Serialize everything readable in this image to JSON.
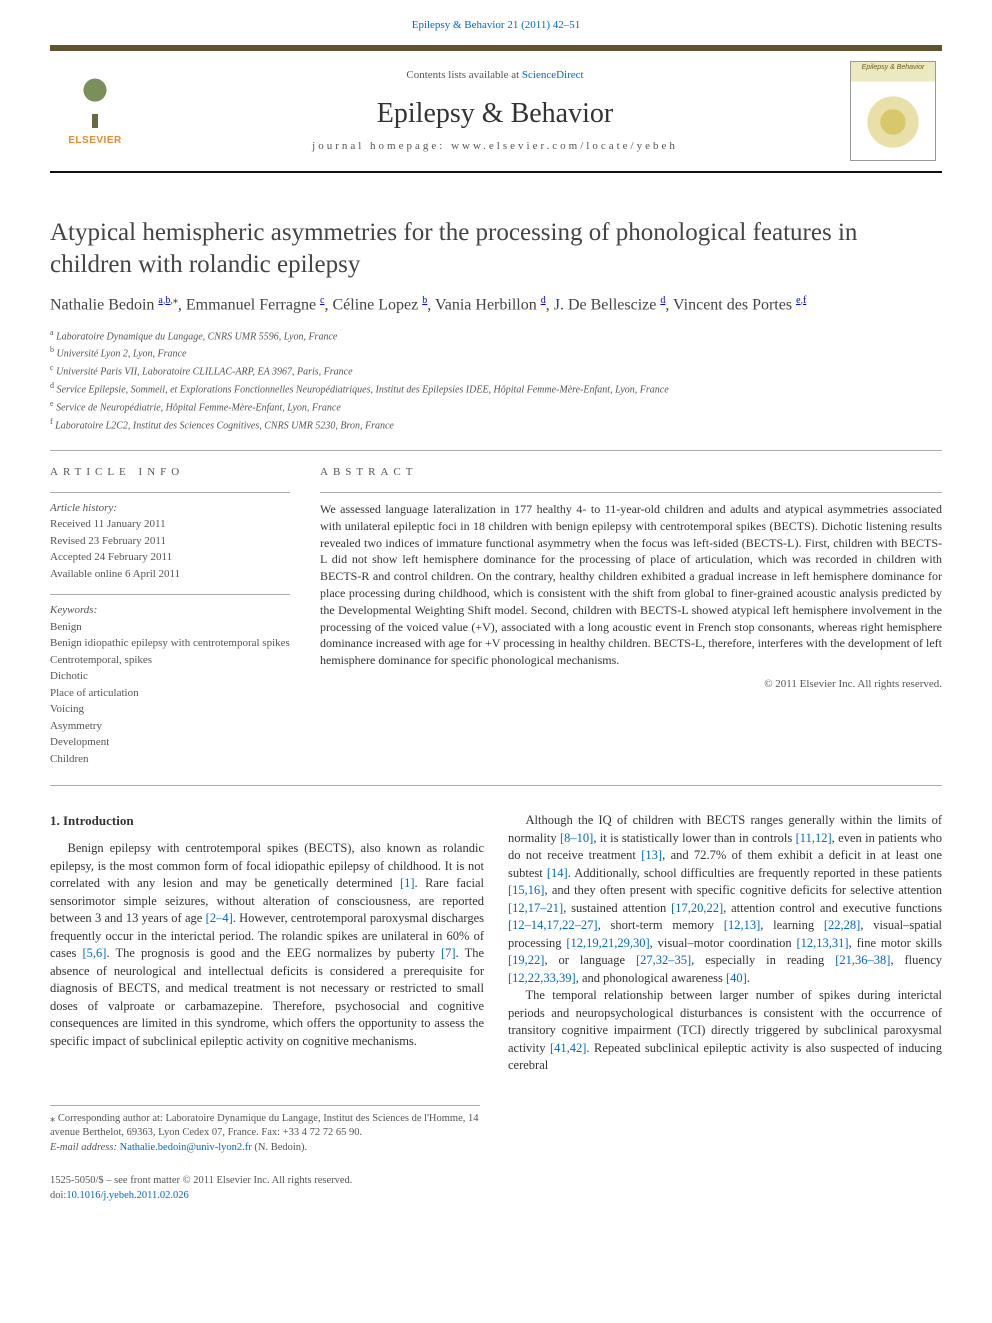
{
  "top_link": {
    "journal": "Epilepsy & Behavior",
    "vol_issue_pages": "21 (2011) 42–51"
  },
  "header": {
    "publisher": "ELSEVIER",
    "contents_prefix": "Contents lists available at ",
    "contents_link": "ScienceDirect",
    "journal_name": "Epilepsy & Behavior",
    "homepage_prefix": "journal homepage: ",
    "homepage": "www.elsevier.com/locate/yebeh",
    "cover_title": "Epilepsy & Behavior"
  },
  "article": {
    "title": "Atypical hemispheric asymmetries for the processing of phonological features in children with rolandic epilepsy",
    "authors": "Nathalie Bedoin |a,b,*|, Emmanuel Ferragne |c|, Céline Lopez |b|, Vania Herbillon |d|, J. De Bellescize |d|, Vincent des Portes |e,f|",
    "affiliations": [
      "a Laboratoire Dynamique du Langage, CNRS UMR 5596, Lyon, France",
      "b Université Lyon 2, Lyon, France",
      "c Université Paris VII, Laboratoire CLILLAC-ARP, EA 3967, Paris, France",
      "d Service Epilepsie, Sommeil, et Explorations Fonctionnelles Neuropédiatriques, Institut des Epilepsies IDEE, Hôpital Femme-Mère-Enfant, Lyon, France",
      "e Service de Neuropédiatrie, Hôpital Femme-Mère-Enfant, Lyon, France",
      "f Laboratoire L2C2, Institut des Sciences Cognitives, CNRS UMR 5230, Bron, France"
    ]
  },
  "meta": {
    "article_info_head": "ARTICLE INFO",
    "history_label": "Article history:",
    "history": [
      "Received 11 January 2011",
      "Revised 23 February 2011",
      "Accepted 24 February 2011",
      "Available online 6 April 2011"
    ],
    "keywords_label": "Keywords:",
    "keywords": [
      "Benign",
      "Benign idiopathic epilepsy with centrotemporal spikes",
      "Centrotemporal, spikes",
      "Dichotic",
      "Place of articulation",
      "Voicing",
      "Asymmetry",
      "Development",
      "Children"
    ]
  },
  "abstract": {
    "head": "ABSTRACT",
    "text": "We assessed language lateralization in 177 healthy 4- to 11-year-old children and adults and atypical asymmetries associated with unilateral epileptic foci in 18 children with benign epilepsy with centrotemporal spikes (BECTS). Dichotic listening results revealed two indices of immature functional asymmetry when the focus was left-sided (BECTS-L). First, children with BECTS-L did not show left hemisphere dominance for the processing of place of articulation, which was recorded in children with BECTS-R and control children. On the contrary, healthy children exhibited a gradual increase in left hemisphere dominance for place processing during childhood, which is consistent with the shift from global to finer-grained acoustic analysis predicted by the Developmental Weighting Shift model. Second, children with BECTS-L showed atypical left hemisphere involvement in the processing of the voiced value (+V), associated with a long acoustic event in French stop consonants, whereas right hemisphere dominance increased with age for +V processing in healthy children. BECTS-L, therefore, interferes with the development of left hemisphere dominance for specific phonological mechanisms.",
    "copyright": "© 2011 Elsevier Inc. All rights reserved."
  },
  "section1": {
    "heading": "1. Introduction",
    "p1_a": "Benign epilepsy with centrotemporal spikes (BECTS), also known as rolandic epilepsy, is the most common form of focal idiopathic epilepsy of childhood. It is not correlated with any lesion and may be genetically determined ",
    "r1": "[1]",
    "p1_b": ". Rare facial sensorimotor simple seizures, without alteration of consciousness, are reported between 3 and 13 years of age ",
    "r2": "[2–4]",
    "p1_c": ". However, centrotemporal paroxysmal discharges frequently occur in the interictal period. The rolandic spikes are unilateral in 60% of cases ",
    "r3": "[5,6]",
    "p1_d": ". The prognosis is good and the EEG normalizes by puberty ",
    "r4": "[7]",
    "p1_e": ". The absence of neurological and intellectual deficits is considered a prerequisite for diagnosis of BECTS, and medical treatment is not necessary or restricted to small doses of valproate or carbamazepine. Therefore, psychosocial and cognitive consequences are limited in this syndrome, which offers the ",
    "p1_f": "opportunity to assess the specific impact of subclinical epileptic activity on cognitive mechanisms.",
    "p2_a": "Although the IQ of children with BECTS ranges generally within the limits of normality ",
    "r5": "[8–10]",
    "p2_b": ", it is statistically lower than in controls ",
    "r6": "[11,12]",
    "p2_c": ", even in patients who do not receive treatment ",
    "r7": "[13]",
    "p2_d": ", and 72.7% of them exhibit a deficit in at least one subtest ",
    "r8": "[14]",
    "p2_e": ". Additionally, school difficulties are frequently reported in these patients ",
    "r9": "[15,16]",
    "p2_f": ", and they often present with specific cognitive deficits for selective attention ",
    "r10": "[12,17–21]",
    "p2_g": ", sustained attention ",
    "r11": "[17,20,22]",
    "p2_h": ", attention control and executive functions ",
    "r12": "[12–14,17,22–27]",
    "p2_i": ", short-term memory ",
    "r13": "[12,13]",
    "p2_j": ", learning ",
    "r14": "[22,28]",
    "p2_k": ", visual–spatial processing ",
    "r15": "[12,19,21,29,30]",
    "p2_l": ", visual–motor coordination ",
    "r16": "[12,13,31]",
    "p2_m": ", fine motor skills ",
    "r17": "[19,22]",
    "p2_n": ", or language ",
    "r18": "[27,32–35]",
    "p2_o": ", especially in reading ",
    "r19": "[21,36–38]",
    "p2_p": ", fluency ",
    "r20": "[12,22,33,39]",
    "p2_q": ", and phonological awareness ",
    "r21": "[40]",
    "p2_r": ".",
    "p3_a": "The temporal relationship between larger number of spikes during interictal periods and neuropsychological disturbances is consistent with the occurrence of transitory cognitive impairment (TCI) directly triggered by subclinical paroxysmal activity ",
    "r22": "[41,42]",
    "p3_b": ". Repeated subclinical epileptic activity is also suspected of inducing cerebral"
  },
  "footnote": {
    "corr_label": "⁎ Corresponding author at: ",
    "corr_text": "Laboratoire Dynamique du Langage, Institut des Sciences de l'Homme, 14 avenue Berthelot, 69363, Lyon Cedex 07, France. Fax: +33 4 72 72 65 90.",
    "email_label": "E-mail address: ",
    "email": "Nathalie.bedoin@univ-lyon2.fr",
    "email_suffix": " (N. Bedoin)."
  },
  "footer": {
    "issn_line": "1525-5050/$ – see front matter © 2011 Elsevier Inc. All rights reserved.",
    "doi_prefix": "doi:",
    "doi": "10.1016/j.yebeh.2011.02.026"
  },
  "colors": {
    "link": "#0066cc",
    "rule_top": "#62522d",
    "rule": "#aaaaaa",
    "text": "#333333",
    "muted": "#555555",
    "publisher": "#e98b2e",
    "background": "#ffffff"
  }
}
